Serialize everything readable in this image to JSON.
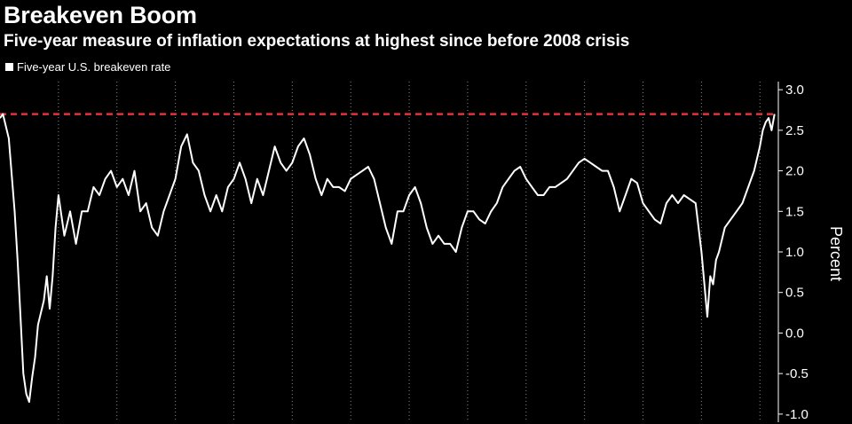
{
  "chart_data": {
    "type": "line",
    "title": "Breakeven Boom",
    "subtitle": "Five-year measure of inflation expectations at highest since before 2008 crisis",
    "ylabel": "Percent",
    "ylim": [
      -1.1,
      3.1
    ],
    "yticks": [
      -1.0,
      -0.5,
      0.0,
      0.5,
      1.0,
      1.5,
      2.0,
      2.5,
      3.0
    ],
    "ytick_labels": [
      "-1.0",
      "-0.5",
      "0.0",
      "0.5",
      "1.0",
      "1.5",
      "2.0",
      "2.5",
      "3.0"
    ],
    "xlim": [
      2008.0,
      2021.3
    ],
    "x_gridlines": [
      2009,
      2010,
      2011,
      2012,
      2013,
      2014,
      2015,
      2016,
      2017,
      2018,
      2019,
      2020,
      2021
    ],
    "grid": true,
    "legend_position": "top-left",
    "reference_line": {
      "value": 2.7,
      "color": "#e8303a",
      "style": "dashed"
    },
    "colors": {
      "series": "#ffffff",
      "background": "#000000",
      "reference": "#e8303a",
      "grid": "#8a8a8a"
    },
    "series": [
      {
        "name": "Five-year U.S. breakeven rate",
        "x": [
          2008.0,
          2008.05,
          2008.15,
          2008.25,
          2008.3,
          2008.35,
          2008.4,
          2008.45,
          2008.5,
          2008.55,
          2008.6,
          2008.65,
          2008.75,
          2008.8,
          2008.85,
          2008.9,
          2008.95,
          2009.0,
          2009.1,
          2009.2,
          2009.3,
          2009.4,
          2009.5,
          2009.6,
          2009.7,
          2009.8,
          2009.9,
          2010.0,
          2010.1,
          2010.2,
          2010.3,
          2010.4,
          2010.5,
          2010.6,
          2010.7,
          2010.8,
          2010.9,
          2011.0,
          2011.1,
          2011.2,
          2011.3,
          2011.4,
          2011.5,
          2011.6,
          2011.7,
          2011.8,
          2011.9,
          2012.0,
          2012.1,
          2012.2,
          2012.3,
          2012.4,
          2012.5,
          2012.6,
          2012.7,
          2012.8,
          2012.9,
          2013.0,
          2013.1,
          2013.2,
          2013.3,
          2013.4,
          2013.5,
          2013.6,
          2013.7,
          2013.8,
          2013.9,
          2014.0,
          2014.1,
          2014.2,
          2014.3,
          2014.4,
          2014.5,
          2014.6,
          2014.7,
          2014.8,
          2014.9,
          2015.0,
          2015.1,
          2015.2,
          2015.3,
          2015.4,
          2015.5,
          2015.6,
          2015.7,
          2015.8,
          2015.9,
          2016.0,
          2016.1,
          2016.2,
          2016.3,
          2016.4,
          2016.5,
          2016.6,
          2016.7,
          2016.8,
          2016.9,
          2017.0,
          2017.1,
          2017.2,
          2017.3,
          2017.4,
          2017.5,
          2017.6,
          2017.7,
          2017.8,
          2017.9,
          2018.0,
          2018.1,
          2018.2,
          2018.3,
          2018.4,
          2018.5,
          2018.6,
          2018.7,
          2018.8,
          2018.9,
          2019.0,
          2019.1,
          2019.2,
          2019.3,
          2019.4,
          2019.5,
          2019.6,
          2019.7,
          2019.8,
          2019.9,
          2020.0,
          2020.1,
          2020.15,
          2020.2,
          2020.25,
          2020.3,
          2020.4,
          2020.5,
          2020.6,
          2020.7,
          2020.8,
          2020.9,
          2021.0,
          2021.05,
          2021.1,
          2021.15,
          2021.2,
          2021.25
        ],
        "values": [
          2.65,
          2.7,
          2.4,
          1.5,
          0.9,
          0.2,
          -0.5,
          -0.75,
          -0.85,
          -0.55,
          -0.3,
          0.1,
          0.4,
          0.7,
          0.3,
          0.7,
          1.3,
          1.7,
          1.2,
          1.5,
          1.1,
          1.5,
          1.5,
          1.8,
          1.7,
          1.9,
          2.0,
          1.8,
          1.9,
          1.7,
          2.0,
          1.5,
          1.6,
          1.3,
          1.2,
          1.5,
          1.7,
          1.9,
          2.3,
          2.45,
          2.1,
          2.0,
          1.7,
          1.5,
          1.7,
          1.5,
          1.8,
          1.9,
          2.1,
          1.9,
          1.6,
          1.9,
          1.7,
          2.0,
          2.3,
          2.1,
          2.0,
          2.1,
          2.3,
          2.4,
          2.2,
          1.9,
          1.7,
          1.9,
          1.8,
          1.8,
          1.75,
          1.9,
          1.95,
          2.0,
          2.05,
          1.9,
          1.6,
          1.3,
          1.1,
          1.5,
          1.5,
          1.7,
          1.8,
          1.6,
          1.3,
          1.1,
          1.2,
          1.1,
          1.1,
          1.0,
          1.3,
          1.5,
          1.5,
          1.4,
          1.35,
          1.5,
          1.6,
          1.8,
          1.9,
          2.0,
          2.05,
          1.9,
          1.8,
          1.7,
          1.7,
          1.8,
          1.8,
          1.85,
          1.9,
          2.0,
          2.1,
          2.15,
          2.1,
          2.05,
          2.0,
          2.0,
          1.8,
          1.5,
          1.7,
          1.9,
          1.85,
          1.6,
          1.5,
          1.4,
          1.35,
          1.6,
          1.7,
          1.6,
          1.7,
          1.65,
          1.6,
          1.0,
          0.2,
          0.7,
          0.6,
          0.9,
          1.0,
          1.3,
          1.4,
          1.5,
          1.6,
          1.8,
          2.0,
          2.3,
          2.5,
          2.6,
          2.65,
          2.5,
          2.7
        ]
      }
    ]
  }
}
